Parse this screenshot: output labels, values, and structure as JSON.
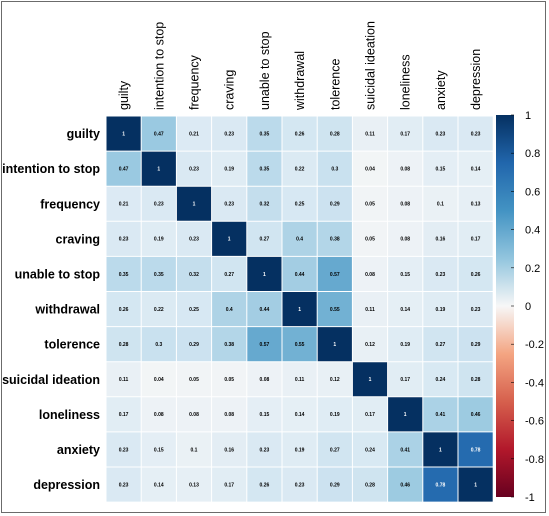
{
  "chart_data": {
    "type": "heatmap",
    "variables": [
      "guilty",
      "intention to stop",
      "frequency",
      "craving",
      "unable to stop",
      "withdrawal",
      "tolerence",
      "suicidal ideation",
      "loneliness",
      "anxiety",
      "depression"
    ],
    "matrix": [
      [
        "1",
        "0.47",
        "0.21",
        "0.23",
        "0.35",
        "0.26",
        "0.28",
        "0.11",
        "0.17",
        "0.23",
        "0.23"
      ],
      [
        "0.47",
        "1",
        "0.23",
        "0.19",
        "0.35",
        "0.22",
        "0.3",
        "0.04",
        "0.08",
        "0.15",
        "0.14"
      ],
      [
        "0.21",
        "0.23",
        "1",
        "0.23",
        "0.32",
        "0.25",
        "0.29",
        "0.05",
        "0.08",
        "0.1",
        "0.13"
      ],
      [
        "0.23",
        "0.19",
        "0.23",
        "1",
        "0.27",
        "0.4",
        "0.38",
        "0.05",
        "0.08",
        "0.16",
        "0.17"
      ],
      [
        "0.35",
        "0.35",
        "0.32",
        "0.27",
        "1",
        "0.44",
        "0.57",
        "0.08",
        "0.15",
        "0.23",
        "0.26"
      ],
      [
        "0.26",
        "0.22",
        "0.25",
        "0.4",
        "0.44",
        "1",
        "0.55",
        "0.11",
        "0.14",
        "0.19",
        "0.23"
      ],
      [
        "0.28",
        "0.3",
        "0.29",
        "0.38",
        "0.57",
        "0.55",
        "1",
        "0.12",
        "0.19",
        "0.27",
        "0.29"
      ],
      [
        "0.11",
        "0.04",
        "0.05",
        "0.05",
        "0.08",
        "0.11",
        "0.12",
        "1",
        "0.17",
        "0.24",
        "0.28"
      ],
      [
        "0.17",
        "0.08",
        "0.08",
        "0.08",
        "0.15",
        "0.14",
        "0.19",
        "0.17",
        "1",
        "0.41",
        "0.46"
      ],
      [
        "0.23",
        "0.15",
        "0.1",
        "0.16",
        "0.23",
        "0.19",
        "0.27",
        "0.24",
        "0.41",
        "1",
        "0.78"
      ],
      [
        "0.23",
        "0.14",
        "0.13",
        "0.17",
        "0.26",
        "0.23",
        "0.29",
        "0.28",
        "0.46",
        "0.78",
        "1"
      ]
    ],
    "colorbar": {
      "range": [
        -1,
        1
      ],
      "ticks": [
        "1",
        "0.8",
        "0.6",
        "0.4",
        "0.2",
        "0",
        "-0.2",
        "-0.4",
        "-0.6",
        "-0.8",
        "-1"
      ]
    },
    "colors": {
      "high": "#053061",
      "mid_high": "#2166ac",
      "low_high": "#92c5de",
      "zero": "#f7f7f7",
      "low_neg": "#f4a582",
      "mid_neg": "#d6604d",
      "neg": "#67001f"
    }
  }
}
